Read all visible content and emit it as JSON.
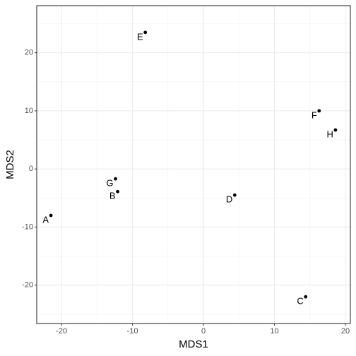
{
  "chart_data": {
    "type": "scatter",
    "x_label": "MDS1",
    "y_label": "MDS2",
    "labels": [
      "A",
      "B",
      "C",
      "D",
      "E",
      "F",
      "G",
      "H"
    ],
    "x": [
      -21.5,
      -12.1,
      14.4,
      4.4,
      -8.2,
      16.3,
      -12.4,
      18.6
    ],
    "values": [
      -8.0,
      -3.9,
      -22.0,
      -4.5,
      23.5,
      10.0,
      -1.7,
      6.7
    ],
    "color": "#000000",
    "xlim": [
      -23.5,
      20.7
    ],
    "ylim": [
      -26.6,
      28.1
    ],
    "xticks": [
      -20,
      -10,
      0,
      10,
      20
    ],
    "yticks": [
      -20,
      -10,
      0,
      10,
      20
    ],
    "xticks_minor": [
      -15,
      -5,
      5,
      15
    ],
    "yticks_minor": [
      -25,
      -15,
      -5,
      5,
      15,
      25
    ],
    "grid": true
  }
}
